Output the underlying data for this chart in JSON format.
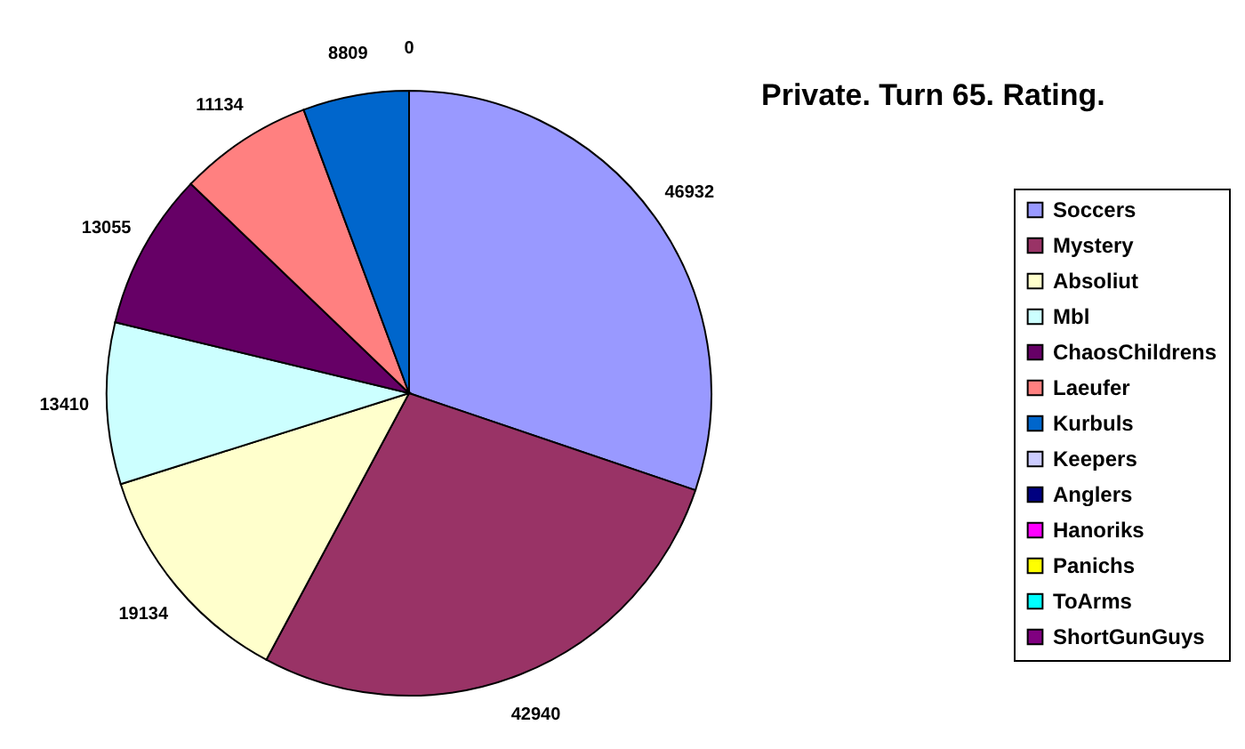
{
  "chart_data": {
    "type": "pie",
    "title": "Private. Turn 65. Rating.",
    "categories": [
      "Soccers",
      "Mystery",
      "Absoliut",
      "Mbl",
      "ChaosChildrens",
      "Laeufer",
      "Kurbuls",
      "Keepers",
      "Anglers",
      "Hanoriks",
      "Panichs",
      "ToArms",
      "ShortGunGuys"
    ],
    "values": [
      46932,
      42940,
      19134,
      13410,
      13055,
      11134,
      8809,
      0,
      0,
      0,
      0,
      0,
      0
    ],
    "colors": [
      "#9999ff",
      "#993366",
      "#ffffcc",
      "#ccffff",
      "#660066",
      "#ff8080",
      "#0066cc",
      "#ccccff",
      "#000080",
      "#ff00ff",
      "#ffff00",
      "#00ffff",
      "#800080"
    ],
    "value_labels": [
      "46932",
      "42940",
      "19134",
      "13410",
      "13055",
      "11134",
      "8809",
      null,
      null,
      null,
      null,
      null,
      "0"
    ],
    "legend": "right"
  }
}
